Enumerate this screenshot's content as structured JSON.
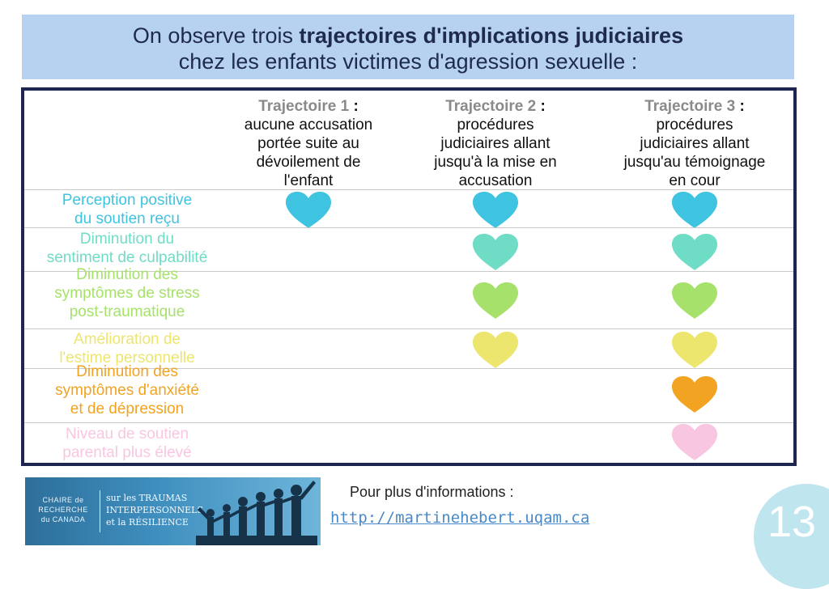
{
  "title": {
    "line1_prefix": "On observe trois ",
    "line1_bold": "trajectoires d'implications judiciaires",
    "line2": "chez les enfants victimes d'agression sexuelle :"
  },
  "columns": [
    {
      "name": "Trajectoire 1",
      "colon": " :",
      "lines": [
        "aucune accusation",
        "portée suite au",
        "dévoilement de",
        "l'enfant"
      ]
    },
    {
      "name": "Trajectoire 2",
      "colon": " :",
      "lines": [
        "procédures",
        "judiciaires allant",
        "jusqu'à la mise en",
        "accusation"
      ]
    },
    {
      "name": "Trajectoire 3",
      "colon": " :",
      "lines": [
        "procédures",
        "judiciaires allant",
        "jusqu'au témoignage",
        "en cour"
      ]
    }
  ],
  "rows": [
    {
      "lines": [
        "Perception positive",
        "du soutien reçu"
      ],
      "color": "#3ec4e0",
      "hearts": [
        true,
        true,
        true
      ]
    },
    {
      "lines": [
        "Diminution du",
        "sentiment de culpabilité"
      ],
      "color": "#6fdcc6",
      "hearts": [
        false,
        true,
        true
      ]
    },
    {
      "lines": [
        "Diminution des",
        "symptômes de stress",
        "post-traumatique"
      ],
      "color": "#a6e26b",
      "hearts": [
        false,
        true,
        true
      ]
    },
    {
      "lines": [
        "Amélioration de",
        "l'estime personnelle"
      ],
      "color": "#ece56e",
      "hearts": [
        false,
        true,
        true
      ]
    },
    {
      "lines": [
        "Diminution des",
        "symptômes d'anxiété",
        "et de dépression"
      ],
      "color": "#f2a321",
      "hearts": [
        false,
        false,
        true
      ]
    },
    {
      "lines": [
        "Niveau de soutien",
        "parental plus élevé"
      ],
      "color": "#f9c6e1",
      "hearts": [
        false,
        false,
        true
      ]
    }
  ],
  "logo": {
    "left_lines": [
      "CHAIRE de",
      "RECHERCHE",
      "du CANADA"
    ],
    "right_lines": [
      "sur les TRAUMAS",
      "INTERPERSONNELS",
      "et la RÉSILIENCE"
    ]
  },
  "footer": {
    "info_label": "Pour plus d'informations :",
    "link": "http://martinehebert.uqam.ca"
  },
  "page_number": "13"
}
